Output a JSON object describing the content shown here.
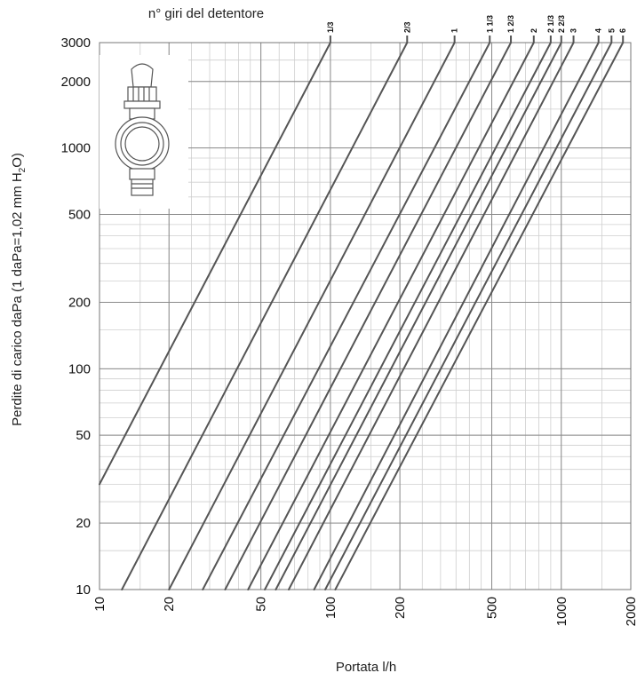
{
  "chart_data": {
    "type": "line",
    "title": "n° giri del detentore",
    "xlabel": "Portata l/h",
    "ylabel_parts": [
      "Perdite di carico daPa (1 daPa=1,02 mm H",
      "2",
      "O)"
    ],
    "x_scale": "log",
    "y_scale": "log",
    "xlim": [
      10,
      2000
    ],
    "ylim": [
      10,
      3000
    ],
    "x_ticks": [
      10,
      20,
      50,
      100,
      200,
      500,
      1000,
      2000
    ],
    "x_tick_labels": [
      "10",
      "20",
      "50",
      "100",
      "200",
      "500",
      "1000",
      "2000"
    ],
    "y_ticks": [
      10,
      20,
      50,
      100,
      200,
      500,
      1000,
      2000,
      3000
    ],
    "y_tick_labels": [
      "10",
      "20",
      "50",
      "100",
      "200",
      "500",
      "1000",
      "2000",
      "3000"
    ],
    "grid": true,
    "line_color": "#555555",
    "series": [
      {
        "name": "1/3",
        "points": [
          [
            10,
            30
          ],
          [
            100,
            3000
          ]
        ]
      },
      {
        "name": "2/3",
        "points": [
          [
            12.5,
            10
          ],
          [
            215,
            3000
          ]
        ]
      },
      {
        "name": "1",
        "points": [
          [
            20,
            10
          ],
          [
            345,
            3000
          ]
        ]
      },
      {
        "name": "1 1/3",
        "points": [
          [
            28,
            10
          ],
          [
            490,
            3000
          ]
        ]
      },
      {
        "name": "1 2/3",
        "points": [
          [
            35,
            10
          ],
          [
            605,
            3000
          ]
        ]
      },
      {
        "name": "2",
        "points": [
          [
            44,
            10
          ],
          [
            760,
            3000
          ]
        ]
      },
      {
        "name": "2 1/3",
        "points": [
          [
            52,
            10
          ],
          [
            900,
            3000
          ]
        ]
      },
      {
        "name": "2 2/3",
        "points": [
          [
            58,
            10
          ],
          [
            1000,
            3000
          ]
        ]
      },
      {
        "name": "3",
        "points": [
          [
            66,
            10
          ],
          [
            1130,
            3000
          ]
        ]
      },
      {
        "name": "4",
        "points": [
          [
            85,
            10
          ],
          [
            1450,
            3000
          ]
        ]
      },
      {
        "name": "5",
        "points": [
          [
            95,
            10
          ],
          [
            1650,
            3000
          ]
        ]
      },
      {
        "name": "6",
        "points": [
          [
            105,
            10
          ],
          [
            1850,
            3000
          ]
        ]
      }
    ]
  }
}
